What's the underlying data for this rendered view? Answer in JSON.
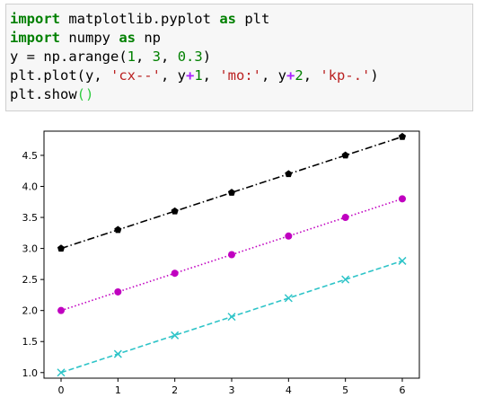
{
  "code": {
    "lines": [
      [
        {
          "t": "import",
          "c": "kw"
        },
        {
          "t": " matplotlib.pyplot ",
          "c": ""
        },
        {
          "t": "as",
          "c": "kw"
        },
        {
          "t": " plt",
          "c": ""
        }
      ],
      [
        {
          "t": "import",
          "c": "kw"
        },
        {
          "t": " numpy ",
          "c": ""
        },
        {
          "t": "as",
          "c": "kw"
        },
        {
          "t": " np",
          "c": ""
        }
      ],
      [
        {
          "t": "y = np.arange(",
          "c": ""
        },
        {
          "t": "1",
          "c": "num"
        },
        {
          "t": ", ",
          "c": ""
        },
        {
          "t": "3",
          "c": "num"
        },
        {
          "t": ", ",
          "c": ""
        },
        {
          "t": "0.3",
          "c": "num"
        },
        {
          "t": ")",
          "c": ""
        }
      ],
      [
        {
          "t": "plt.plot(y, ",
          "c": ""
        },
        {
          "t": "'cx--'",
          "c": "str"
        },
        {
          "t": ", y",
          "c": ""
        },
        {
          "t": "+",
          "c": "op"
        },
        {
          "t": "1",
          "c": "num"
        },
        {
          "t": ", ",
          "c": ""
        },
        {
          "t": "'mo:'",
          "c": "str"
        },
        {
          "t": ", y",
          "c": ""
        },
        {
          "t": "+",
          "c": "op"
        },
        {
          "t": "2",
          "c": "num"
        },
        {
          "t": ", ",
          "c": ""
        },
        {
          "t": "'kp-.'",
          "c": "str"
        },
        {
          "t": ")",
          "c": ""
        }
      ],
      [
        {
          "t": "plt.show",
          "c": ""
        },
        {
          "t": "()",
          "c": "paren-g"
        }
      ]
    ]
  },
  "chart_data": {
    "type": "line",
    "x": [
      0,
      1,
      2,
      3,
      4,
      5,
      6
    ],
    "xticks": [
      "0",
      "1",
      "2",
      "3",
      "4",
      "5",
      "6"
    ],
    "yticks": [
      "1.0",
      "1.5",
      "2.0",
      "2.5",
      "3.0",
      "3.5",
      "4.0",
      "4.5"
    ],
    "xlim": [
      -0.3,
      6.3
    ],
    "ylim": [
      0.91,
      4.89
    ],
    "series": [
      {
        "style": "cx--",
        "color": "#2ec4c8",
        "marker": "x",
        "linestyle": "dashed",
        "values": [
          1.0,
          1.3,
          1.6,
          1.9,
          2.2,
          2.5,
          2.8
        ]
      },
      {
        "style": "mo:",
        "color": "#c000c0",
        "marker": "o",
        "linestyle": "dotted",
        "values": [
          2.0,
          2.3,
          2.6,
          2.9,
          3.2,
          3.5,
          3.8
        ]
      },
      {
        "style": "kp-.",
        "color": "#000000",
        "marker": "p",
        "linestyle": "dashdot",
        "values": [
          3.0,
          3.3,
          3.6,
          3.9,
          4.2,
          4.5,
          4.8
        ]
      }
    ],
    "grid": false
  }
}
